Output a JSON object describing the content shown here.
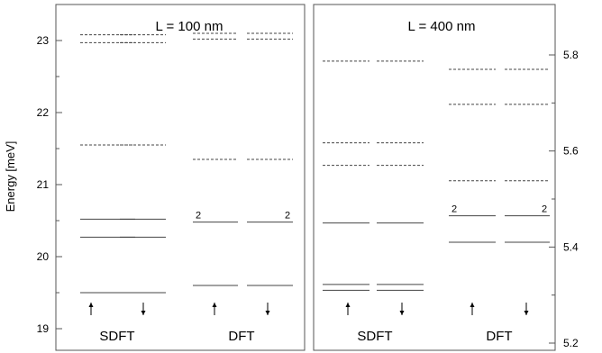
{
  "chart_data": [
    {
      "type": "energy-level diagram",
      "title": "L = 100 nm",
      "ylabel": "Energy  [meV]",
      "ylim": [
        18.7,
        23.5
      ],
      "y_ticks": [
        19,
        20,
        21,
        22,
        23
      ],
      "y_tick_labels": [
        "19",
        "20",
        "21",
        "22",
        "23"
      ],
      "axis_side": "left",
      "groups": [
        {
          "name": "SDFT",
          "columns": [
            {
              "spin": "up",
              "solid": [
                19.5,
                20.27,
                20.52
              ],
              "dashed": [
                21.55,
                22.97,
                23.08
              ]
            },
            {
              "spin": "down",
              "solid": [
                19.5,
                20.27,
                20.52
              ],
              "dashed": [
                21.55,
                22.97,
                23.08
              ]
            }
          ]
        },
        {
          "name": "DFT",
          "columns": [
            {
              "spin": "up",
              "solid": [
                19.6,
                20.48
              ],
              "dashed": [
                21.35,
                23.02,
                23.1
              ],
              "degeneracy": [
                {
                  "level": 20.48,
                  "label": "2",
                  "side": "left"
                }
              ]
            },
            {
              "spin": "down",
              "solid": [
                19.6,
                20.48
              ],
              "dashed": [
                21.35,
                23.02,
                23.1
              ],
              "degeneracy": [
                {
                  "level": 20.48,
                  "label": "2",
                  "side": "right"
                }
              ]
            }
          ]
        }
      ]
    },
    {
      "type": "energy-level diagram",
      "title": "L = 400 nm",
      "ylim": [
        5.185,
        5.905
      ],
      "y_ticks": [
        5.2,
        5.4,
        5.6,
        5.8
      ],
      "y_tick_labels": [
        "5.2",
        "5.4",
        "5.6",
        "5.8"
      ],
      "axis_side": "right",
      "groups": [
        {
          "name": "SDFT",
          "columns": [
            {
              "spin": "up",
              "solid": [
                5.31,
                5.322,
                5.45
              ],
              "dashed": [
                5.57,
                5.617,
                5.787
              ]
            },
            {
              "spin": "down",
              "solid": [
                5.31,
                5.322,
                5.45
              ],
              "dashed": [
                5.57,
                5.617,
                5.787
              ]
            }
          ]
        },
        {
          "name": "DFT",
          "columns": [
            {
              "spin": "up",
              "solid": [
                5.41,
                5.465
              ],
              "dashed": [
                5.538,
                5.697,
                5.77
              ],
              "degeneracy": [
                {
                  "level": 5.465,
                  "label": "2",
                  "side": "left"
                }
              ]
            },
            {
              "spin": "down",
              "solid": [
                5.41,
                5.465
              ],
              "dashed": [
                5.538,
                5.697,
                5.77
              ],
              "degeneracy": [
                {
                  "level": 5.465,
                  "label": "2",
                  "side": "right"
                }
              ]
            }
          ]
        }
      ]
    }
  ]
}
